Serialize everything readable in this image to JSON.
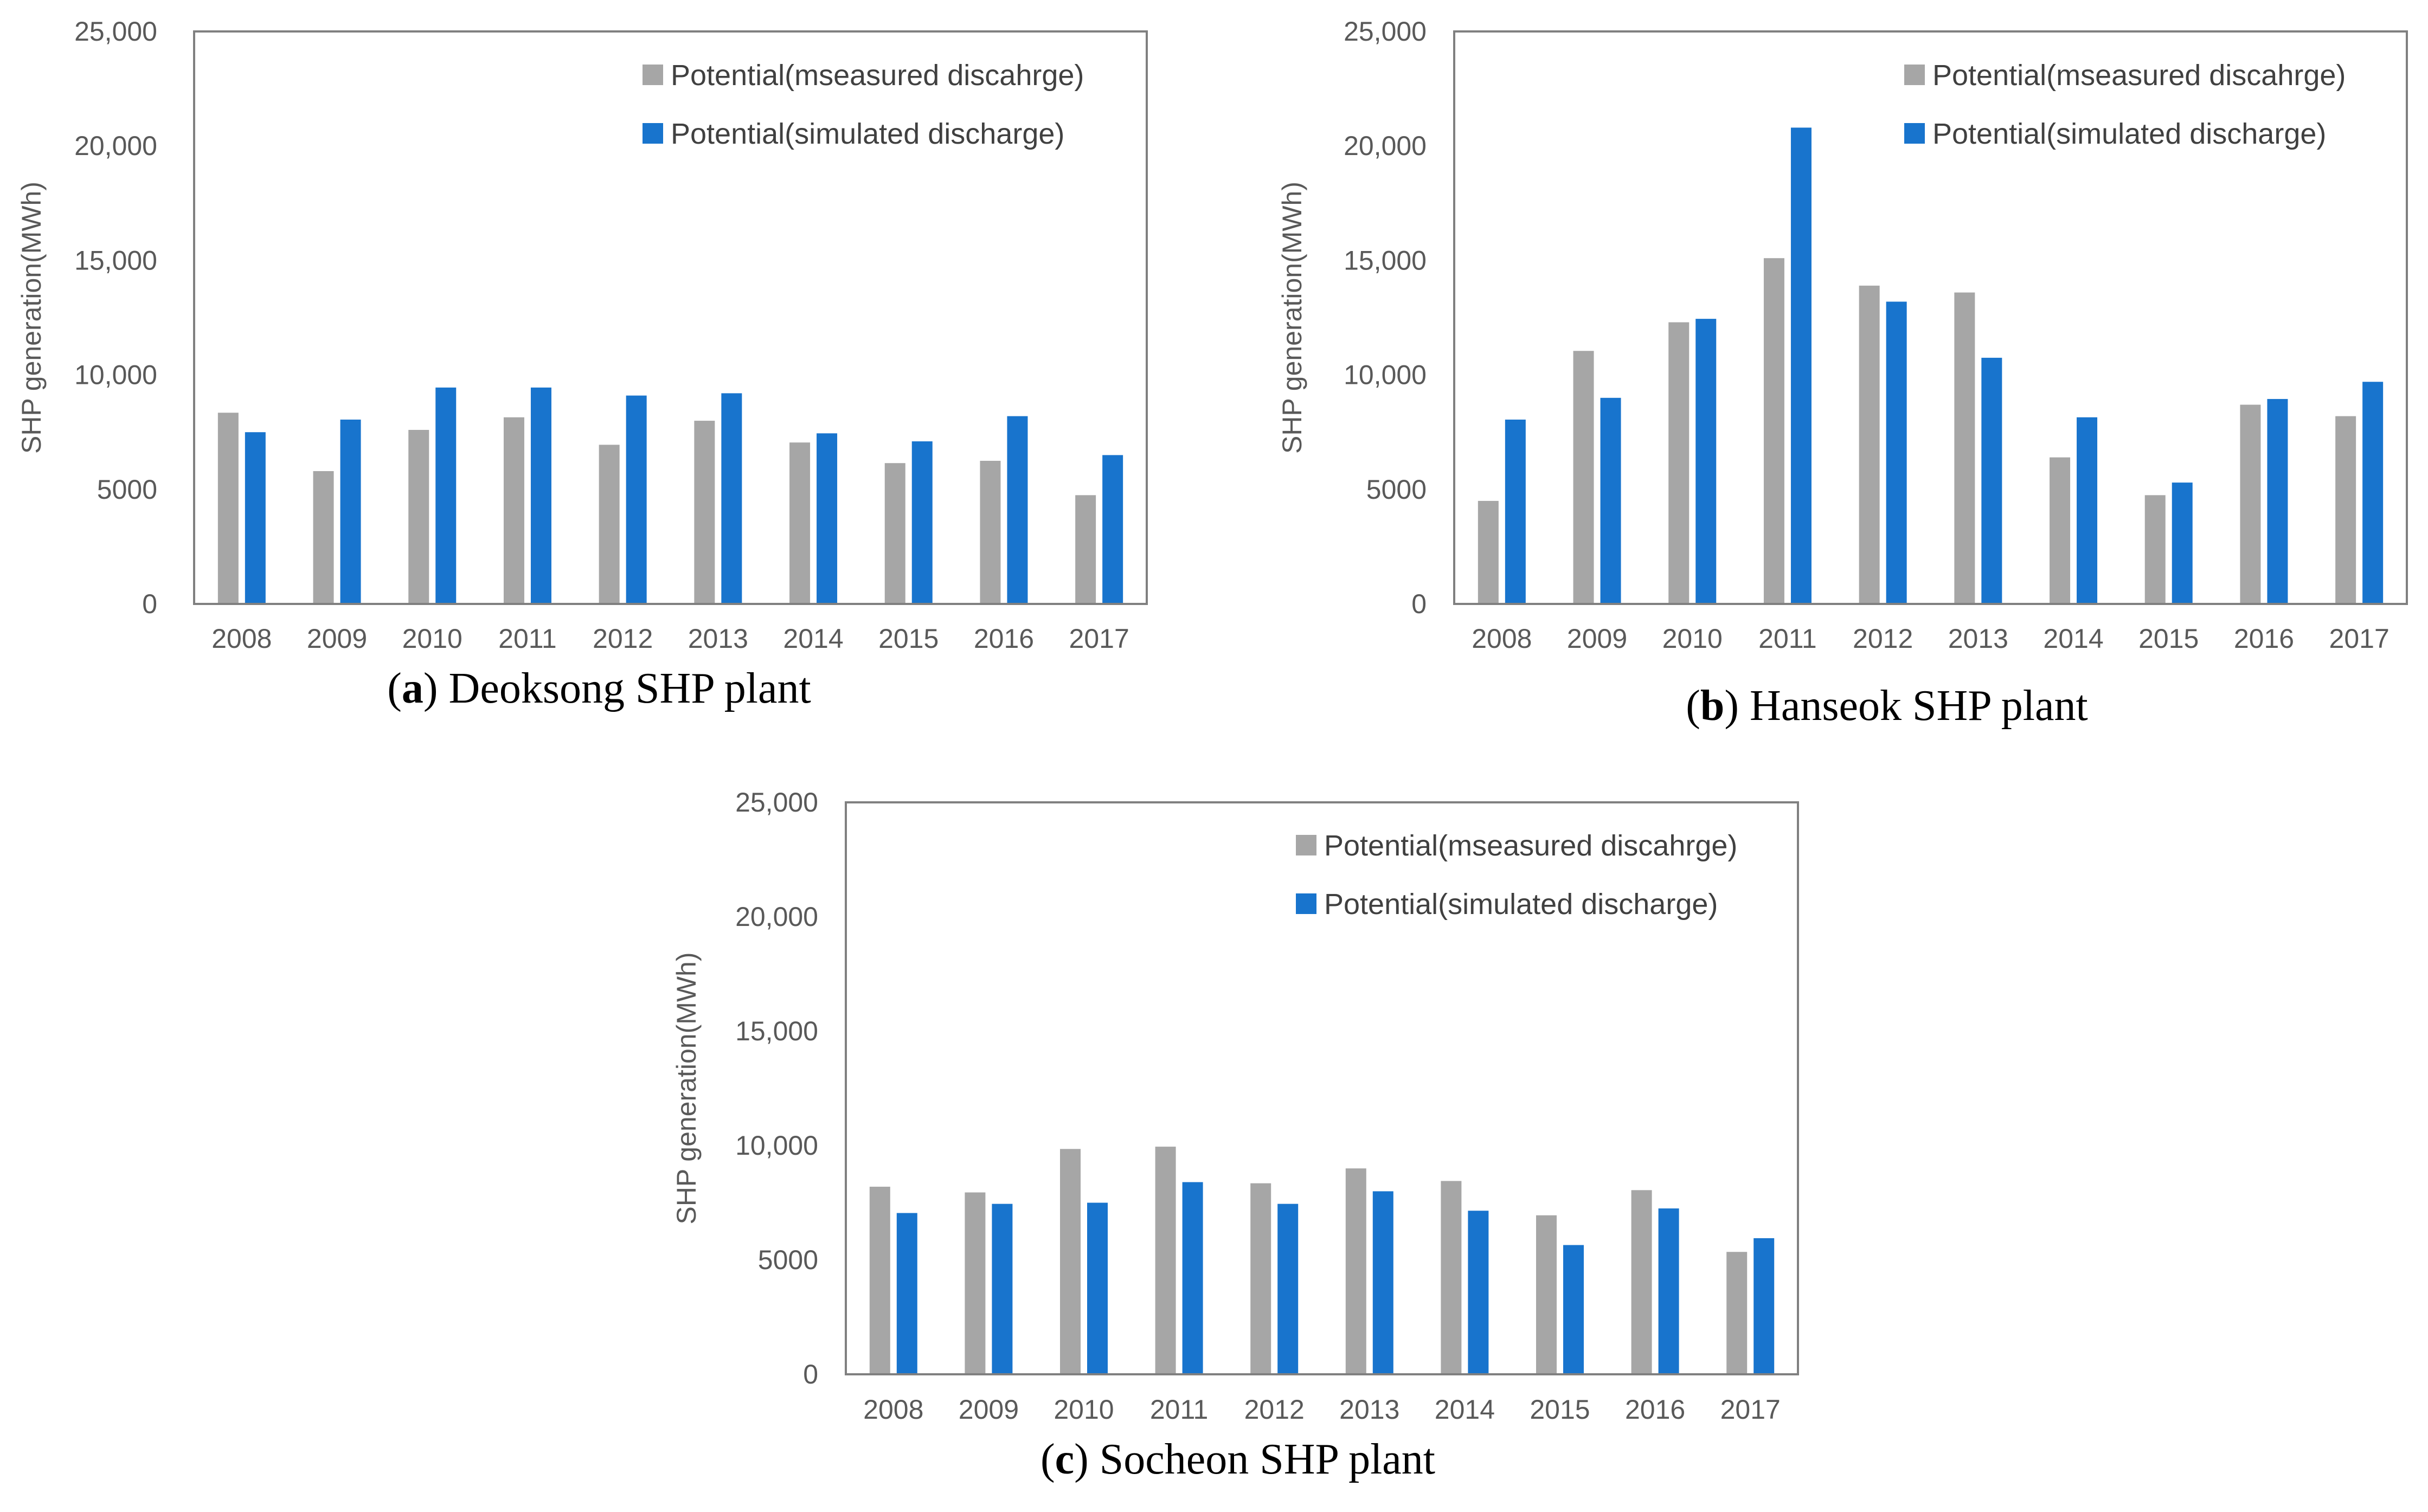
{
  "colors": {
    "measured": "#A6A6A6",
    "simulated": "#1874CD",
    "axis": "#808080",
    "text": "#595959"
  },
  "chart_data": [
    {
      "type": "bar",
      "panel_letter": "a",
      "caption_rest": ") Deoksong SHP plant",
      "ylabel": "SHP generation(MWh)",
      "ylim": [
        0,
        25000
      ],
      "yticks": [
        0,
        5000,
        10000,
        15000,
        20000,
        25000
      ],
      "ytick_labels": [
        "0",
        "5000",
        "10,000",
        "15,000",
        "20,000",
        "25,000"
      ],
      "categories": [
        "2008",
        "2009",
        "2010",
        "2011",
        "2012",
        "2013",
        "2014",
        "2015",
        "2016",
        "2017"
      ],
      "legend_position": "top-right",
      "series": [
        {
          "name": "Potential(mseasured discahrge)",
          "color": "#A6A6A6",
          "values": [
            8350,
            5800,
            7600,
            8150,
            6950,
            8000,
            7050,
            6150,
            6250,
            4750
          ]
        },
        {
          "name": "Potential(simulated discharge)",
          "color": "#1874CD",
          "values": [
            7500,
            8050,
            9450,
            9450,
            9100,
            9200,
            7450,
            7100,
            8200,
            6500
          ]
        }
      ]
    },
    {
      "type": "bar",
      "panel_letter": "b",
      "caption_rest": ") Hanseok SHP plant",
      "ylabel": "SHP generation(MWh)",
      "ylim": [
        0,
        25000
      ],
      "yticks": [
        0,
        5000,
        10000,
        15000,
        20000,
        25000
      ],
      "ytick_labels": [
        "0",
        "5000",
        "10,000",
        "15,000",
        "20,000",
        "25,000"
      ],
      "categories": [
        "2008",
        "2009",
        "2010",
        "2011",
        "2012",
        "2013",
        "2014",
        "2015",
        "2016",
        "2017"
      ],
      "legend_position": "top-right",
      "series": [
        {
          "name": "Potential(mseasured discahrge)",
          "color": "#A6A6A6",
          "values": [
            4500,
            11050,
            12300,
            15100,
            13900,
            13600,
            6400,
            4750,
            8700,
            8200
          ]
        },
        {
          "name": "Potential(simulated discharge)",
          "color": "#1874CD",
          "values": [
            8050,
            9000,
            12450,
            20800,
            13200,
            10750,
            8150,
            5300,
            8950,
            9700
          ]
        }
      ]
    },
    {
      "type": "bar",
      "panel_letter": "c",
      "caption_rest": ") Socheon SHP plant",
      "ylabel": "SHP generation(MWh)",
      "ylim": [
        0,
        25000
      ],
      "yticks": [
        0,
        5000,
        10000,
        15000,
        20000,
        25000
      ],
      "ytick_labels": [
        "0",
        "5000",
        "10,000",
        "15,000",
        "20,000",
        "25,000"
      ],
      "categories": [
        "2008",
        "2009",
        "2010",
        "2011",
        "2012",
        "2013",
        "2014",
        "2015",
        "2016",
        "2017"
      ],
      "legend_position": "top-right",
      "series": [
        {
          "name": "Potential(mseasured discahrge)",
          "color": "#A6A6A6",
          "values": [
            8200,
            7950,
            9850,
            9950,
            8350,
            9000,
            8450,
            6950,
            8050,
            5350
          ]
        },
        {
          "name": "Potential(simulated discharge)",
          "color": "#1874CD",
          "values": [
            7050,
            7450,
            7500,
            8400,
            7450,
            8000,
            7150,
            5650,
            7250,
            5950
          ]
        }
      ]
    }
  ]
}
